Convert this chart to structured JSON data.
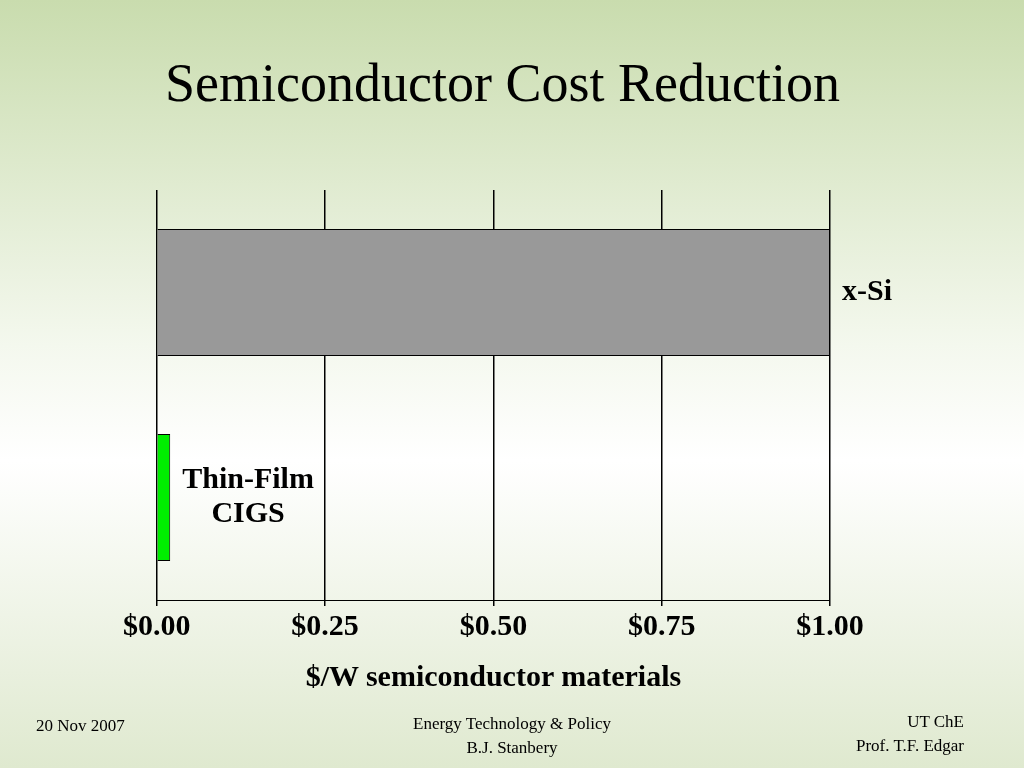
{
  "chart_data": {
    "type": "bar",
    "title": "Semiconductor Cost Reduction",
    "orientation": "horizontal",
    "categories": [
      "x-Si",
      "Thin-Film CIGS"
    ],
    "values": [
      1.0,
      0.02
    ],
    "colors": [
      "#999999",
      "#00ee00"
    ],
    "xlabel": "$/W semiconductor materials",
    "xlim": [
      0,
      1
    ],
    "xticks": [
      {
        "value": 0,
        "label": "$0.00"
      },
      {
        "value": 0.25,
        "label": "$0.25"
      },
      {
        "value": 0.5,
        "label": "$0.50"
      },
      {
        "value": 0.75,
        "label": "$0.75"
      },
      {
        "value": 1,
        "label": "$1.00"
      }
    ],
    "grid": "x",
    "tick_labels": "x",
    "legend": false,
    "annotations": [
      "20 Nov 2007",
      "Energy Technology & Policy",
      "B.J. Stanbery",
      "UT ChE",
      "Prof. T.F. Edgar"
    ]
  }
}
